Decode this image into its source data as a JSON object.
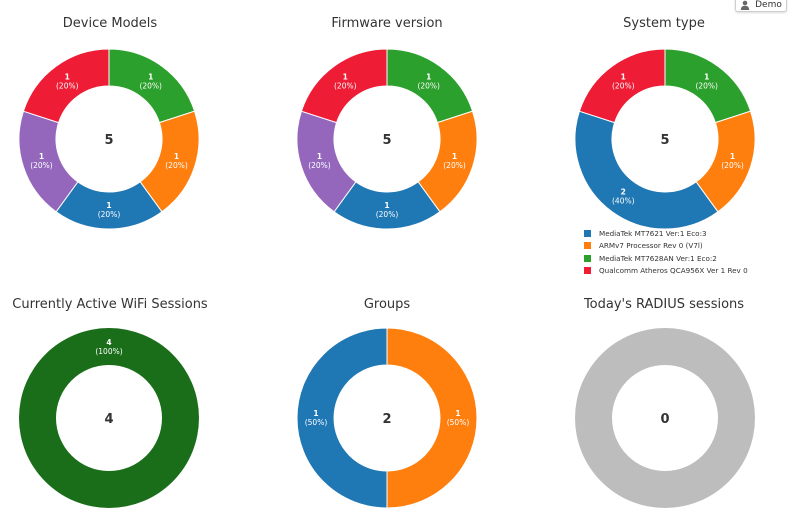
{
  "header": {
    "user_label": "Demo"
  },
  "chart_data": [
    {
      "id": "device-models",
      "type": "pie",
      "title": "Device Models",
      "center_label": "5",
      "slices": [
        {
          "value": 1,
          "count_label": "1",
          "pct_label": "(20%)",
          "color": "#2ca02c"
        },
        {
          "value": 1,
          "count_label": "1",
          "pct_label": "(20%)",
          "color": "#ff7f0e"
        },
        {
          "value": 1,
          "count_label": "1",
          "pct_label": "(20%)",
          "color": "#1f77b4"
        },
        {
          "value": 1,
          "count_label": "1",
          "pct_label": "(20%)",
          "color": "#9467bd"
        },
        {
          "value": 1,
          "count_label": "1",
          "pct_label": "(20%)",
          "color": "#ee1c35"
        }
      ]
    },
    {
      "id": "firmware-version",
      "type": "pie",
      "title": "Firmware version",
      "center_label": "5",
      "slices": [
        {
          "value": 1,
          "count_label": "1",
          "pct_label": "(20%)",
          "color": "#2ca02c"
        },
        {
          "value": 1,
          "count_label": "1",
          "pct_label": "(20%)",
          "color": "#ff7f0e"
        },
        {
          "value": 1,
          "count_label": "1",
          "pct_label": "(20%)",
          "color": "#1f77b4"
        },
        {
          "value": 1,
          "count_label": "1",
          "pct_label": "(20%)",
          "color": "#9467bd"
        },
        {
          "value": 1,
          "count_label": "1",
          "pct_label": "(20%)",
          "color": "#ee1c35"
        }
      ]
    },
    {
      "id": "system-type",
      "type": "pie",
      "title": "System type",
      "center_label": "5",
      "slices": [
        {
          "value": 1,
          "count_label": "1",
          "pct_label": "(20%)",
          "color": "#2ca02c"
        },
        {
          "value": 1,
          "count_label": "1",
          "pct_label": "(20%)",
          "color": "#ff7f0e"
        },
        {
          "value": 2,
          "count_label": "2",
          "pct_label": "(40%)",
          "color": "#1f77b4"
        },
        {
          "value": 1,
          "count_label": "1",
          "pct_label": "(20%)",
          "color": "#ee1c35"
        }
      ],
      "legend": [
        {
          "label": "MediaTek MT7621 Ver:1 Eco:3",
          "color": "#1f77b4"
        },
        {
          "label": "ARMv7 Processor Rev 0 (V7l)",
          "color": "#ff7f0e"
        },
        {
          "label": "MediaTek MT7628AN Ver:1 Eco:2",
          "color": "#2ca02c"
        },
        {
          "label": "Qualcomm Atheros QCA956X Ver 1 Rev 0",
          "color": "#ee1c35"
        }
      ]
    },
    {
      "id": "active-wifi-sessions",
      "type": "pie",
      "title": "Currently Active WiFi Sessions",
      "center_label": "4",
      "slices": [
        {
          "value": 4,
          "count_label": "4",
          "pct_label": "(100%)",
          "color": "#1a6e1a"
        }
      ]
    },
    {
      "id": "groups",
      "type": "pie",
      "title": "Groups",
      "center_label": "2",
      "slices": [
        {
          "value": 1,
          "count_label": "1",
          "pct_label": "(50%)",
          "color": "#ff7f0e"
        },
        {
          "value": 1,
          "count_label": "1",
          "pct_label": "(50%)",
          "color": "#1f77b4"
        }
      ]
    },
    {
      "id": "radius-sessions",
      "type": "pie",
      "title": "Today's RADIUS sessions",
      "center_label": "0",
      "slices": [],
      "empty_color": "#bdbdbd"
    }
  ]
}
